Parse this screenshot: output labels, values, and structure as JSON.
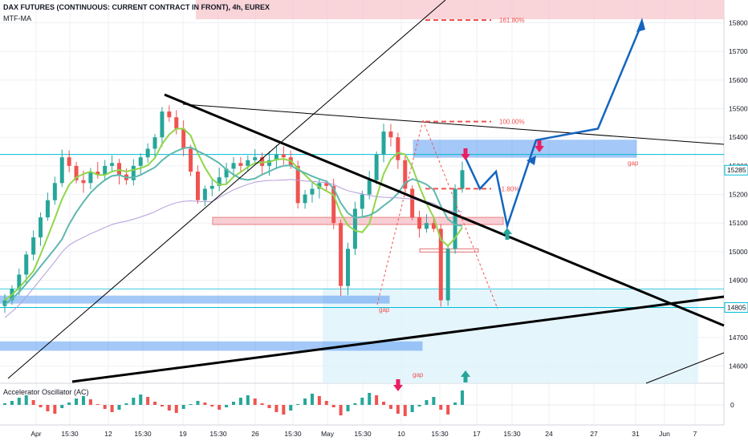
{
  "header": {
    "symbol_title": "DAX FUTURES (CONTINUOUS: CURRENT CONTRACT IN FRONT), 4h, EUREX",
    "indicator": "MTF-MA",
    "oscillator_title": "Accelerator Oscillator (AC)"
  },
  "price_axis": {
    "ticks": [
      "15800",
      "15700",
      "15600",
      "15500",
      "15400",
      "15300",
      "15200",
      "15100",
      "15000",
      "14900",
      "14700",
      "14600"
    ],
    "current_price_label": "15285",
    "marked_price_label": "14805",
    "osc_zero_label": "0"
  },
  "time_axis": {
    "ticks": [
      "Apr",
      "15:30",
      "12",
      "15:30",
      "19",
      "15:30",
      "26",
      "15:30",
      "May",
      "15:30",
      "10",
      "15:30",
      "17",
      "15:30",
      "24",
      "27",
      "31",
      "Jun",
      "7"
    ]
  },
  "annotations": {
    "fib_161": "161.80%",
    "fib_100": "100.00%",
    "fib_1": "-1.80%",
    "gap_1": "gap",
    "gap_2": "gap",
    "gap_3": "gap"
  },
  "colors": {
    "up": "#26a69a",
    "down": "#ef5350",
    "ma_fast": "#90d64b",
    "ma_mid": "#5fb8b0",
    "ma_slow": "#b39ddb",
    "zone_pink": "#f8c9d0",
    "zone_blue": "#5b9cf2",
    "zone_cyan": "#dff3fb",
    "projection": "#1565c0",
    "hline": "#00bcd4"
  },
  "chart_data": {
    "type": "candlestick",
    "title": "DAX FUTURES (CONTINUOUS: CURRENT CONTRACT IN FRONT), 4h, EUREX",
    "ylim": [
      14540,
      15880
    ],
    "y_axis_ticks": [
      14600,
      14700,
      14900,
      15000,
      15100,
      15200,
      15300,
      15400,
      15500,
      15600,
      15700,
      15800
    ],
    "current_price": 15285,
    "marked_level": 14805,
    "price_path": [
      14830,
      14870,
      14920,
      14990,
      15050,
      15120,
      15180,
      15240,
      15330,
      15300,
      15250,
      15240,
      15280,
      15270,
      15300,
      15310,
      15270,
      15250,
      15300,
      15330,
      15360,
      15400,
      15490,
      15470,
      15430,
      15360,
      15280,
      15180,
      15220,
      15230,
      15260,
      15290,
      15310,
      15300,
      15320,
      15330,
      15300,
      15320,
      15340,
      15330,
      15300,
      15170,
      15200,
      15220,
      15240,
      15230,
      15100,
      14880,
      15010,
      15150,
      15200,
      15250,
      15340,
      15420,
      15400,
      15320,
      15220,
      15120,
      15080,
      15100,
      15080,
      14830,
      15010,
      15220,
      15285
    ],
    "projection_path": [
      15340,
      15220,
      15280,
      15090,
      15390,
      15430,
      15800
    ],
    "fib_levels": {
      "161.80%": 15810,
      "100.00%": 15455,
      "-1.80%": 15220
    },
    "oscillator": {
      "name": "Accelerator Oscillator (AC)",
      "values": [
        0.2,
        0.5,
        0.9,
        1.2,
        0.6,
        -0.3,
        -0.8,
        -1.1,
        -0.4,
        0.3,
        0.8,
        1.1,
        0.7,
        0.1,
        -0.5,
        -0.9,
        -0.6,
        0.2,
        0.9,
        1.3,
        1.0,
        0.4,
        -0.2,
        -0.7,
        -1.0,
        -0.5,
        0.1,
        0.5,
        0.3,
        -0.2,
        -0.6,
        -0.3,
        0.4,
        0.9,
        1.2,
        0.8,
        0.2,
        -0.4,
        -0.9,
        -1.2,
        -0.7,
        0.1,
        0.8,
        1.4,
        1.1,
        0.5,
        -0.3,
        -1.3,
        -0.8,
        0.2,
        0.9,
        1.5,
        1.2,
        0.4,
        -0.5,
        -1.1,
        -1.4,
        -0.9,
        -0.2,
        0.6,
        1.0,
        -0.6,
        -1.2,
        0.3,
        1.8
      ]
    }
  }
}
